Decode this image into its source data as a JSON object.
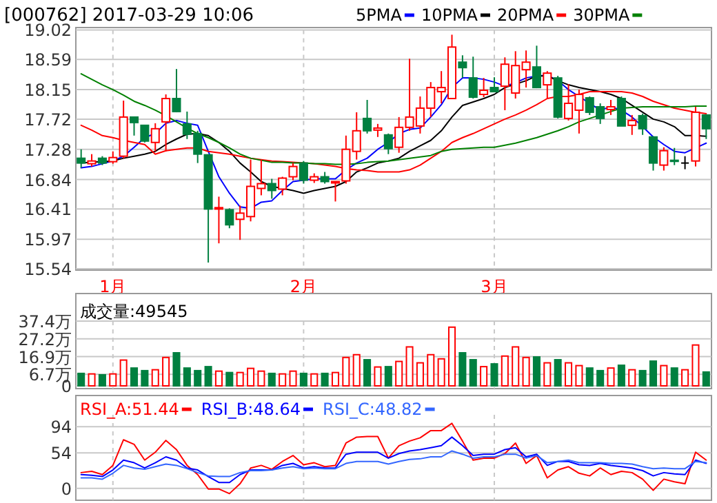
{
  "chart_data": [
    {
      "type": "candlestick",
      "title": "[000762] 2017-03-29 10:06",
      "categories": [
        null,
        null,
        null,
        "1月",
        null,
        null,
        null,
        null,
        null,
        null,
        null,
        null,
        null,
        null,
        null,
        null,
        null,
        null,
        null,
        null,
        null,
        "2月",
        null,
        null,
        null,
        null,
        null,
        null,
        null,
        null,
        null,
        null,
        null,
        null,
        null,
        null,
        null,
        null,
        null,
        "3月",
        null,
        null,
        null,
        null,
        null,
        null,
        null,
        null,
        null,
        null,
        null,
        null,
        null,
        null,
        null,
        null,
        null,
        null,
        null,
        null
      ],
      "ohlc": [
        [
          17.15,
          17.28,
          17.01,
          17.08
        ],
        [
          17.07,
          17.21,
          17.03,
          17.11
        ],
        [
          17.15,
          17.18,
          17.05,
          17.08
        ],
        [
          17.1,
          17.25,
          17.07,
          17.16
        ],
        [
          17.18,
          17.99,
          17.15,
          17.75
        ],
        [
          17.75,
          17.75,
          17.48,
          17.67
        ],
        [
          17.63,
          17.63,
          17.38,
          17.4
        ],
        [
          17.38,
          17.66,
          17.25,
          17.58
        ],
        [
          17.68,
          18.08,
          17.25,
          18.02
        ],
        [
          18.02,
          18.45,
          17.82,
          17.83
        ],
        [
          17.65,
          17.83,
          17.43,
          17.5
        ],
        [
          17.51,
          17.55,
          17.08,
          17.21
        ],
        [
          17.2,
          17.2,
          15.63,
          16.41
        ],
        [
          16.41,
          16.59,
          15.91,
          16.43
        ],
        [
          16.4,
          16.42,
          16.13,
          16.18
        ],
        [
          16.26,
          16.46,
          15.96,
          16.35
        ],
        [
          16.3,
          17.13,
          16.23,
          16.74
        ],
        [
          16.71,
          17.13,
          16.61,
          16.78
        ],
        [
          16.78,
          16.85,
          16.56,
          16.68
        ],
        [
          16.7,
          16.88,
          16.61,
          16.86
        ],
        [
          16.88,
          17.08,
          16.83,
          17.03
        ],
        [
          17.08,
          17.11,
          16.78,
          16.83
        ],
        [
          16.83,
          16.93,
          16.79,
          16.88
        ],
        [
          16.88,
          16.95,
          16.78,
          16.81
        ],
        [
          16.79,
          16.81,
          16.52,
          16.81
        ],
        [
          16.82,
          17.48,
          16.78,
          17.28
        ],
        [
          17.25,
          17.82,
          17.13,
          17.55
        ],
        [
          17.73,
          18.0,
          17.51,
          17.55
        ],
        [
          17.56,
          17.65,
          17.46,
          17.59
        ],
        [
          17.49,
          17.51,
          17.21,
          17.29
        ],
        [
          17.31,
          17.75,
          17.23,
          17.6
        ],
        [
          17.6,
          18.6,
          17.55,
          17.75
        ],
        [
          17.62,
          18.05,
          17.51,
          17.88
        ],
        [
          17.88,
          18.26,
          17.75,
          18.18
        ],
        [
          18.12,
          18.42,
          17.95,
          18.18
        ],
        [
          18.02,
          18.95,
          18.02,
          18.77
        ],
        [
          18.55,
          18.65,
          18.32,
          18.47
        ],
        [
          18.32,
          18.63,
          18.02,
          18.04
        ],
        [
          18.08,
          18.32,
          18.04,
          18.14
        ],
        [
          18.18,
          18.33,
          18.12,
          18.12
        ],
        [
          18.2,
          18.62,
          17.85,
          18.52
        ],
        [
          18.1,
          18.71,
          18.02,
          18.5
        ],
        [
          18.44,
          18.72,
          18.18,
          18.55
        ],
        [
          18.48,
          18.79,
          18.17,
          18.18
        ],
        [
          18.22,
          18.42,
          18.02,
          18.39
        ],
        [
          18.32,
          18.35,
          17.73,
          17.75
        ],
        [
          17.73,
          18.23,
          17.7,
          17.95
        ],
        [
          17.85,
          18.15,
          17.51,
          18.08
        ],
        [
          18.03,
          18.05,
          17.78,
          17.82
        ],
        [
          17.9,
          17.95,
          17.65,
          17.73
        ],
        [
          17.86,
          18.0,
          17.78,
          17.9
        ],
        [
          18.02,
          18.05,
          17.62,
          17.62
        ],
        [
          17.63,
          17.78,
          17.49,
          17.7
        ],
        [
          17.77,
          17.8,
          17.49,
          17.58
        ],
        [
          17.46,
          17.47,
          16.97,
          17.08
        ],
        [
          17.05,
          17.31,
          16.97,
          17.26
        ],
        [
          17.12,
          17.3,
          17.05,
          17.11
        ],
        [
          17.08,
          17.18,
          16.99,
          17.08
        ],
        [
          17.11,
          17.9,
          17.03,
          17.82
        ],
        [
          17.78,
          17.79,
          17.43,
          17.58
        ]
      ],
      "series": [
        {
          "name": "5PMA",
          "type": "line",
          "color": "#0000ff",
          "values": [
            17.01,
            17.03,
            17.07,
            17.11,
            17.18,
            17.31,
            17.45,
            17.51,
            17.66,
            17.7,
            17.66,
            17.63,
            17.25,
            16.88,
            16.64,
            16.44,
            16.42,
            16.51,
            16.53,
            16.68,
            16.81,
            16.83,
            16.85,
            16.85,
            16.85,
            16.98,
            17.08,
            17.15,
            17.28,
            17.38,
            17.51,
            17.57,
            17.59,
            17.75,
            17.93,
            18.18,
            18.32,
            18.32,
            18.3,
            18.26,
            18.2,
            18.25,
            18.32,
            18.35,
            18.36,
            18.28,
            18.15,
            18.05,
            17.95,
            17.85,
            17.9,
            17.85,
            17.75,
            17.61,
            17.46,
            17.35,
            17.25,
            17.23,
            17.3,
            17.37
          ]
        },
        {
          "name": "10PMA",
          "type": "line",
          "color": "#000000",
          "values": [
            17.08,
            17.09,
            17.1,
            17.11,
            17.15,
            17.18,
            17.21,
            17.25,
            17.35,
            17.43,
            17.5,
            17.51,
            17.48,
            17.38,
            17.25,
            17.08,
            16.95,
            16.81,
            16.74,
            16.71,
            16.68,
            16.64,
            16.68,
            16.71,
            16.74,
            16.81,
            16.95,
            17.01,
            17.08,
            17.11,
            17.15,
            17.25,
            17.33,
            17.41,
            17.55,
            17.75,
            17.92,
            17.97,
            18.02,
            18.08,
            18.18,
            18.23,
            18.28,
            18.35,
            18.35,
            18.28,
            18.22,
            18.18,
            18.15,
            18.12,
            18.08,
            18.02,
            17.92,
            17.82,
            17.72,
            17.68,
            17.61,
            17.48,
            17.48,
            17.47
          ]
        },
        {
          "name": "20PMA",
          "type": "line",
          "color": "#ff0000",
          "values": [
            17.63,
            17.56,
            17.48,
            17.45,
            17.41,
            17.38,
            17.35,
            17.21,
            17.26,
            17.28,
            17.3,
            17.3,
            17.25,
            17.23,
            17.21,
            17.18,
            17.15,
            17.13,
            17.11,
            17.1,
            17.09,
            17.08,
            17.07,
            17.05,
            17.03,
            17.0,
            16.98,
            16.97,
            16.95,
            16.95,
            16.95,
            16.98,
            17.05,
            17.15,
            17.25,
            17.38,
            17.45,
            17.51,
            17.58,
            17.65,
            17.72,
            17.78,
            17.85,
            17.93,
            18.02,
            18.05,
            18.05,
            18.08,
            18.12,
            18.12,
            18.12,
            18.12,
            18.1,
            18.05,
            17.98,
            17.93,
            17.88,
            17.85,
            17.82,
            17.8
          ]
        },
        {
          "name": "30PMA",
          "type": "line",
          "color": "#008000",
          "values": [
            18.38,
            18.3,
            18.22,
            18.15,
            18.07,
            17.98,
            17.92,
            17.85,
            17.77,
            17.68,
            17.59,
            17.51,
            17.45,
            17.38,
            17.3,
            17.21,
            17.15,
            17.12,
            17.09,
            17.09,
            17.08,
            17.08,
            17.07,
            17.07,
            17.06,
            17.06,
            17.07,
            17.09,
            17.1,
            17.11,
            17.13,
            17.15,
            17.17,
            17.19,
            17.25,
            17.28,
            17.29,
            17.3,
            17.31,
            17.31,
            17.34,
            17.37,
            17.41,
            17.45,
            17.5,
            17.55,
            17.61,
            17.68,
            17.73,
            17.78,
            17.83,
            17.88,
            17.89,
            17.9,
            17.9,
            17.9,
            17.9,
            17.9,
            17.91,
            17.91
          ]
        }
      ],
      "ylim": [
        15.54,
        19.02
      ],
      "yticks": [
        15.54,
        15.97,
        16.41,
        16.84,
        17.28,
        17.72,
        18.15,
        18.59,
        19.02
      ],
      "grid": true,
      "legend": "top"
    },
    {
      "type": "bar",
      "title": "成交量:49545",
      "categories": [
        null,
        null,
        null,
        null,
        null,
        null,
        null,
        null,
        null,
        null,
        null,
        null,
        null,
        null,
        null,
        null,
        null,
        null,
        null,
        null,
        null,
        null,
        null,
        null,
        null,
        null,
        null,
        null,
        null,
        null,
        null,
        null,
        null,
        null,
        null,
        null,
        null,
        null,
        null,
        null,
        null,
        null,
        null,
        null,
        null,
        null,
        null,
        null,
        null,
        null,
        null,
        null,
        null,
        null,
        null,
        null,
        null,
        null,
        null,
        null
      ],
      "values": [
        7.2,
        6.9,
        6.4,
        6.9,
        14.9,
        10.3,
        8.8,
        9.3,
        16.4,
        19.1,
        10.3,
        8.8,
        11.1,
        8.5,
        7.7,
        7.7,
        10.1,
        8.5,
        7.2,
        6.9,
        8.5,
        7.2,
        6.9,
        7.2,
        7.7,
        16.4,
        18.0,
        15.1,
        10.9,
        11.1,
        14.1,
        22.5,
        13.3,
        18.0,
        15.6,
        33.9,
        19.1,
        15.1,
        11.1,
        12.7,
        17.2,
        22.5,
        16.4,
        16.7,
        13.3,
        15.1,
        13.3,
        11.7,
        10.3,
        8.8,
        10.3,
        11.9,
        9.3,
        8.8,
        14.3,
        11.7,
        10.3,
        9.3,
        23.6,
        8.0
      ],
      "colors": [
        "#008040",
        "#ff0000",
        "#008040",
        "#ff0000",
        "#ff0000",
        "#008040",
        "#008040",
        "#ff0000",
        "#ff0000",
        "#008040",
        "#008040",
        "#008040",
        "#008040",
        "#ff0000",
        "#008040",
        "#ff0000",
        "#ff0000",
        "#ff0000",
        "#008040",
        "#ff0000",
        "#ff0000",
        "#008040",
        "#ff0000",
        "#008040",
        "#ff0000",
        "#ff0000",
        "#ff0000",
        "#008040",
        "#ff0000",
        "#008040",
        "#ff0000",
        "#ff0000",
        "#ff0000",
        "#ff0000",
        "#ff0000",
        "#ff0000",
        "#008040",
        "#008040",
        "#ff0000",
        "#008040",
        "#ff0000",
        "#ff0000",
        "#ff0000",
        "#008040",
        "#ff0000",
        "#008040",
        "#ff0000",
        "#ff0000",
        "#008040",
        "#008040",
        "#ff0000",
        "#008040",
        "#ff0000",
        "#008040",
        "#008040",
        "#ff0000",
        "#008040",
        "#ff0000",
        "#ff0000",
        "#008040"
      ],
      "ylim": [
        0,
        37.4
      ],
      "yticks": [
        0,
        {
          "value": 6.7,
          "label": "6.7万"
        },
        {
          "value": 16.9,
          "label": "16.9万"
        },
        {
          "value": 27.2,
          "label": "27.2万"
        },
        {
          "value": 37.4,
          "label": "37.4万"
        }
      ],
      "grid": true,
      "tick_labels": "y"
    },
    {
      "type": "line",
      "categories": [
        null,
        null,
        null,
        null,
        null,
        null,
        null,
        null,
        null,
        null,
        null,
        null,
        null,
        null,
        null,
        null,
        null,
        null,
        null,
        null,
        null,
        null,
        null,
        null,
        null,
        null,
        null,
        null,
        null,
        null,
        null,
        null,
        null,
        null,
        null,
        null,
        null,
        null,
        null,
        null,
        null,
        null,
        null,
        null,
        null,
        null,
        null,
        null,
        null,
        null,
        null,
        null,
        null,
        null,
        null,
        null,
        null,
        null,
        null,
        null
      ],
      "series": [
        {
          "name": "RSI_A:51.44",
          "color": "#ff0000",
          "values": [
            24,
            26,
            21,
            35,
            74,
            67,
            43,
            55,
            73,
            59,
            35,
            21,
            -1,
            -1,
            -8,
            7,
            31,
            35,
            29,
            41,
            50,
            36,
            39,
            33,
            35,
            69,
            78,
            79,
            79,
            46,
            65,
            72,
            77,
            88,
            88,
            99,
            72,
            43,
            46,
            46,
            53,
            69,
            38,
            50,
            16,
            28,
            33,
            23,
            19,
            31,
            21,
            26,
            24,
            14,
            -3,
            14,
            10,
            7,
            55,
            43
          ]
        },
        {
          "name": "RSI_B:48.64",
          "color": "#0000ff",
          "values": [
            21,
            20,
            18,
            28,
            43,
            39,
            31,
            39,
            48,
            43,
            31,
            28,
            18,
            9,
            9,
            21,
            28,
            28,
            28,
            35,
            38,
            31,
            33,
            31,
            31,
            52,
            55,
            55,
            55,
            46,
            53,
            57,
            59,
            62,
            65,
            78,
            65,
            50,
            52,
            52,
            59,
            62,
            48,
            52,
            35,
            41,
            41,
            36,
            35,
            38,
            35,
            33,
            31,
            27,
            19,
            24,
            22,
            21,
            43,
            38
          ]
        },
        {
          "name": "RSI_C:48.82",
          "color": "#3366ff",
          "values": [
            16,
            16,
            14,
            23,
            35,
            31,
            29,
            33,
            37,
            35,
            30,
            24,
            19,
            18,
            18,
            24,
            27,
            27,
            28,
            31,
            33,
            30,
            31,
            30,
            30,
            38,
            41,
            41,
            41,
            37,
            41,
            44,
            45,
            48,
            48,
            57,
            52,
            46,
            48,
            48,
            52,
            52,
            46,
            50,
            39,
            41,
            43,
            39,
            39,
            39,
            38,
            38,
            37,
            33,
            30,
            31,
            30,
            30,
            41,
            39
          ]
        }
      ],
      "ylim": [
        -16,
        112
      ],
      "yticks": [
        0,
        54,
        94
      ],
      "grid": true,
      "tick_labels": "y",
      "legend": "top left"
    }
  ]
}
